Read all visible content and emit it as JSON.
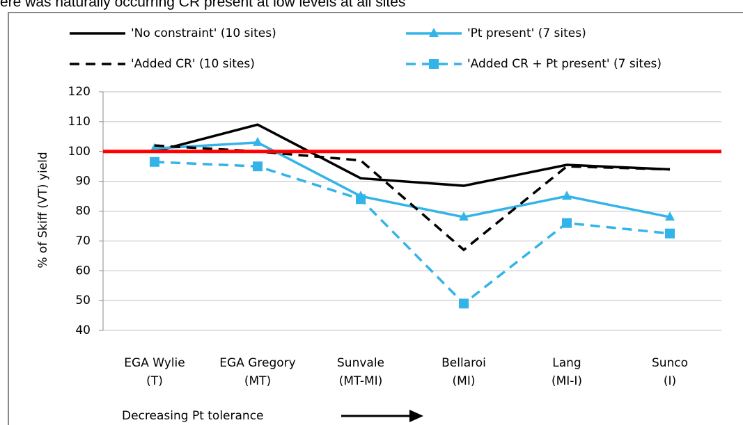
{
  "chart_data": {
    "type": "line",
    "title": "ere was naturally occurring CR present at low levels at all sites",
    "y_label": "% of Skiff (VT) yield",
    "annotation": "Decreasing Pt tolerance",
    "categories": [
      [
        "EGA Wylie",
        "(T)"
      ],
      [
        "EGA Gregory",
        "(MT)"
      ],
      [
        "Sunvale",
        "(MT-MI)"
      ],
      [
        "Bellaroi",
        "(MI)"
      ],
      [
        "Lang",
        "(MI-I)"
      ],
      [
        "Sunco",
        "(I)"
      ]
    ],
    "series": [
      {
        "name": "'No constraint' (10 sites)",
        "color": "#000000",
        "dash": false,
        "marker": "none",
        "values": [
          100,
          109,
          91,
          88.5,
          95.5,
          94
        ]
      },
      {
        "name": "'Pt present' (7 sites)",
        "color": "#33b4e8",
        "dash": false,
        "marker": "triangle",
        "values": [
          101,
          103,
          85,
          78,
          85,
          78
        ]
      },
      {
        "name": "'Added CR' (10 sites)",
        "color": "#000000",
        "dash": true,
        "marker": "none",
        "values": [
          102,
          100,
          97,
          67,
          95,
          94
        ]
      },
      {
        "name": "'Added CR + Pt present' (7 sites)",
        "color": "#33b4e8",
        "dash": true,
        "marker": "square",
        "values": [
          96.5,
          95,
          84,
          49,
          76,
          72.5
        ]
      }
    ],
    "reference_line": {
      "value": 100,
      "color": "#ff0000"
    },
    "ylim": [
      40,
      120
    ],
    "yticks": [
      40,
      50,
      60,
      70,
      80,
      90,
      100,
      110,
      120
    ],
    "grid": true
  }
}
